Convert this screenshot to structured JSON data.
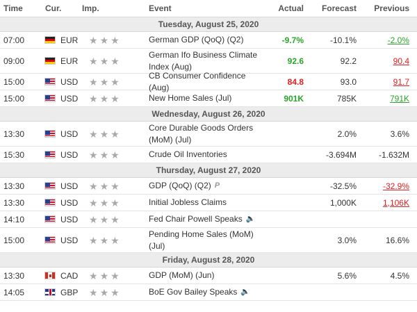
{
  "colors": {
    "positive": "#2aa52a",
    "negative": "#e02020",
    "day_bar": "#ececec",
    "star": "#a9a9a9"
  },
  "header": {
    "time": "Time",
    "cur": "Cur.",
    "imp": "Imp.",
    "event": "Event",
    "actual": "Actual",
    "forecast": "Forecast",
    "previous": "Previous"
  },
  "days": [
    {
      "label": "Tuesday, August 25, 2020",
      "events": [
        {
          "time": "07:00",
          "currency": "EUR",
          "flag": "de-flag-icon",
          "importance": 3,
          "event": "German GDP (QoQ) (Q2)",
          "actual": "-9.7%",
          "actual_status": "positive",
          "forecast": "-10.1%",
          "previous": "-2.0%",
          "previous_status": "positive"
        },
        {
          "time": "09:00",
          "currency": "EUR",
          "flag": "de-flag-icon",
          "importance": 3,
          "event": "German Ifo Business Climate Index (Aug)",
          "actual": "92.6",
          "actual_status": "positive",
          "forecast": "92.2",
          "previous": "90.4",
          "previous_status": "negative"
        },
        {
          "time": "15:00",
          "currency": "USD",
          "flag": "us-flag-icon",
          "importance": 3,
          "event": "CB Consumer Confidence (Aug)",
          "actual": "84.8",
          "actual_status": "negative",
          "forecast": "93.0",
          "previous": "91.7",
          "previous_status": "negative"
        },
        {
          "time": "15:00",
          "currency": "USD",
          "flag": "us-flag-icon",
          "importance": 3,
          "event": "New Home Sales (Jul)",
          "actual": "901K",
          "actual_status": "positive",
          "forecast": "785K",
          "previous": "791K",
          "previous_status": "positive"
        }
      ]
    },
    {
      "label": "Wednesday, August 26, 2020",
      "events": [
        {
          "time": "13:30",
          "currency": "USD",
          "flag": "us-flag-icon",
          "importance": 3,
          "event": "Core Durable Goods Orders (MoM) (Jul)",
          "actual": "",
          "forecast": "2.0%",
          "previous": "3.6%"
        },
        {
          "time": "15:30",
          "currency": "USD",
          "flag": "us-flag-icon",
          "importance": 3,
          "event": "Crude Oil Inventories",
          "actual": "",
          "forecast": "-3.694M",
          "previous": "-1.632M"
        }
      ]
    },
    {
      "label": "Thursday, August 27, 2020",
      "events": [
        {
          "time": "13:30",
          "currency": "USD",
          "flag": "us-flag-icon",
          "importance": 3,
          "event": "GDP (QoQ) (Q2)",
          "extra": "P",
          "actual": "",
          "forecast": "-32.5%",
          "previous": "-32.9%",
          "previous_status": "negative"
        },
        {
          "time": "13:30",
          "currency": "USD",
          "flag": "us-flag-icon",
          "importance": 3,
          "event": "Initial Jobless Claims",
          "actual": "",
          "forecast": "1,000K",
          "previous": "1,106K",
          "previous_status": "negative"
        },
        {
          "time": "14:10",
          "currency": "USD",
          "flag": "us-flag-icon",
          "importance": 3,
          "event": "Fed Chair Powell Speaks",
          "speaker": true,
          "actual": "",
          "forecast": "",
          "previous": ""
        },
        {
          "time": "15:00",
          "currency": "USD",
          "flag": "us-flag-icon",
          "importance": 3,
          "event": "Pending Home Sales (MoM) (Jul)",
          "actual": "",
          "forecast": "3.0%",
          "previous": "16.6%"
        }
      ]
    },
    {
      "label": "Friday, August 28, 2020",
      "events": [
        {
          "time": "13:30",
          "currency": "CAD",
          "flag": "ca-flag-icon",
          "importance": 3,
          "event": "GDP (MoM) (Jun)",
          "actual": "",
          "forecast": "5.6%",
          "previous": "4.5%"
        },
        {
          "time": "14:05",
          "currency": "GBP",
          "flag": "gb-flag-icon",
          "importance": 3,
          "event": "BoE Gov Bailey Speaks",
          "speaker": true,
          "actual": "",
          "forecast": "",
          "previous": ""
        }
      ]
    }
  ]
}
